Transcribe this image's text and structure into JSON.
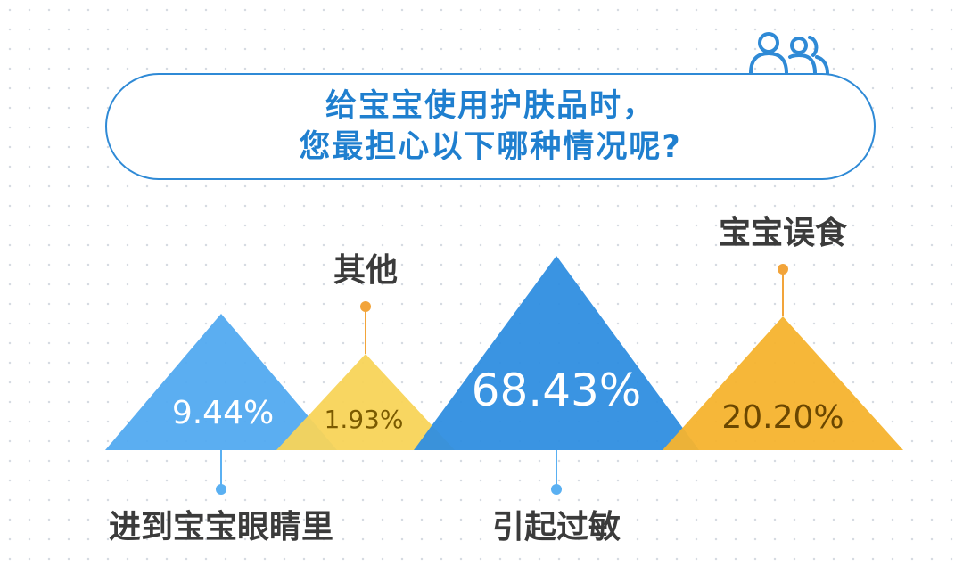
{
  "chart_data": {
    "type": "bar",
    "title": [
      "给宝宝使用护肤品时，",
      "您最担心以下哪种情况呢?"
    ],
    "categories": [
      "进到宝宝眼睛里",
      "其他",
      "引起过敏",
      "宝宝误食"
    ],
    "values": [
      9.44,
      1.93,
      68.43,
      20.2
    ],
    "value_labels": [
      "9.44%",
      "1.93%",
      "68.43%",
      "20.20%"
    ],
    "label_positions": [
      "below",
      "above",
      "below",
      "above"
    ],
    "colors": [
      "#52aaf0",
      "#f8d459",
      "#2f8ee0",
      "#f6b32e"
    ],
    "shape": "triangle",
    "legend": "none",
    "grid": false
  },
  "icons": {
    "header": "users-icon"
  }
}
